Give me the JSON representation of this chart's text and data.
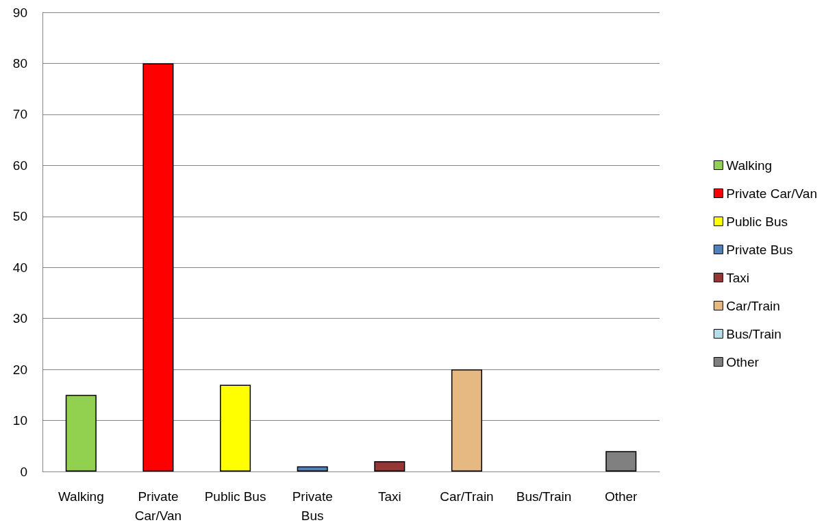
{
  "chart_data": {
    "type": "bar",
    "categories": [
      "Walking",
      "Private Car/Van",
      "Public Bus",
      "Private Bus",
      "Taxi",
      "Car/Train",
      "Bus/Train",
      "Other"
    ],
    "stacked": true,
    "series": [
      {
        "name": "Walking",
        "color": "#92d050",
        "values": [
          15,
          null,
          null,
          null,
          null,
          null,
          null,
          null
        ]
      },
      {
        "name": "Private Car/Van",
        "color": "#ff0000",
        "values": [
          null,
          80,
          null,
          null,
          null,
          null,
          null,
          null
        ]
      },
      {
        "name": "Public Bus",
        "color": "#ffff00",
        "values": [
          null,
          null,
          17,
          null,
          null,
          null,
          null,
          null
        ]
      },
      {
        "name": "Private Bus",
        "color": "#4f81bd",
        "values": [
          null,
          null,
          null,
          1,
          null,
          null,
          null,
          null
        ]
      },
      {
        "name": "Taxi",
        "color": "#953735",
        "values": [
          null,
          null,
          null,
          null,
          2,
          null,
          null,
          null
        ]
      },
      {
        "name": "Car/Train",
        "color": "#e6b983",
        "values": [
          null,
          null,
          null,
          null,
          null,
          20,
          null,
          null
        ]
      },
      {
        "name": "Bus/Train",
        "color": "#b7dee8",
        "values": [
          null,
          null,
          null,
          null,
          null,
          null,
          0,
          null
        ]
      },
      {
        "name": "Other",
        "color": "#808080",
        "values": [
          null,
          null,
          null,
          null,
          null,
          null,
          null,
          4
        ]
      }
    ],
    "ylim": [
      0,
      90
    ],
    "yticks": [
      0,
      10,
      20,
      30,
      40,
      50,
      60,
      70,
      80,
      90
    ],
    "grid": "y",
    "legend": "right"
  }
}
